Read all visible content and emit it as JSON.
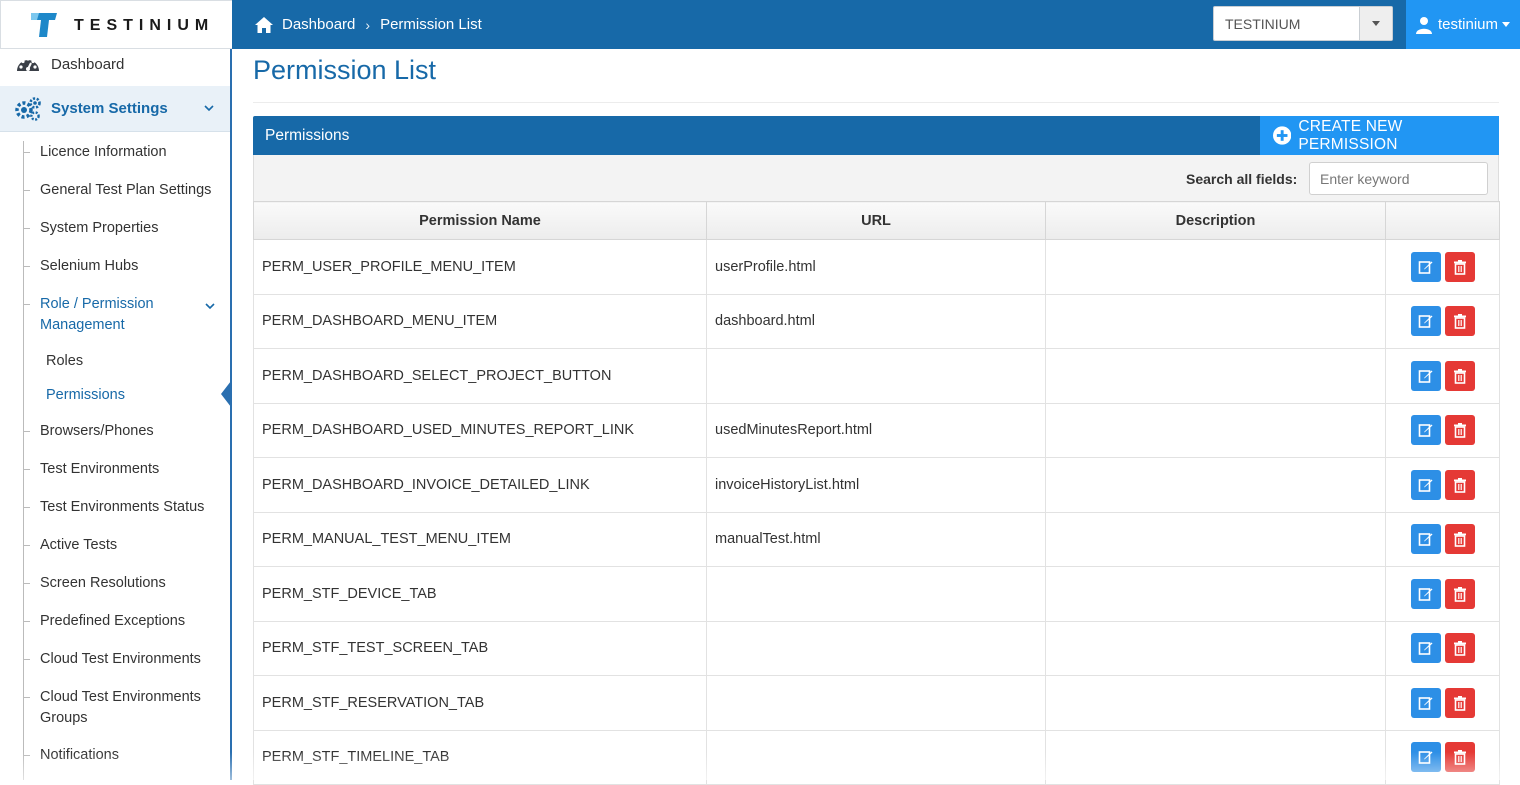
{
  "brand": {
    "name": "TESTINIUM"
  },
  "breadcrumb": {
    "home": "Dashboard",
    "current": "Permission List"
  },
  "project_select": {
    "value": "TESTINIUM"
  },
  "user": {
    "name": "testinium"
  },
  "sidebar": {
    "dashboard": "Dashboard",
    "system_settings": "System Settings",
    "items": [
      "Licence Information",
      "General Test Plan Settings",
      "System Properties",
      "Selenium Hubs"
    ],
    "role_group": {
      "line1": "Role / Permission",
      "line2": "Management"
    },
    "role_sub": [
      "Roles",
      "Permissions"
    ],
    "items_after": [
      "Browsers/Phones",
      "Test Environments",
      "Test Environments Status",
      "Active Tests",
      "Screen Resolutions",
      "Predefined Exceptions",
      "Cloud Test Environments"
    ],
    "cloud_groups": {
      "line1": "Cloud Test Environments",
      "line2": "Groups"
    },
    "notifications": "Notifications"
  },
  "page": {
    "title": "Permission List"
  },
  "panel": {
    "title": "Permissions",
    "create_label": "CREATE NEW PERMISSION"
  },
  "search": {
    "label": "Search all fields:",
    "placeholder": "Enter keyword"
  },
  "table": {
    "columns": [
      "Permission Name",
      "URL",
      "Description",
      ""
    ],
    "rows": [
      {
        "name": "PERM_USER_PROFILE_MENU_ITEM",
        "url": "userProfile.html",
        "description": ""
      },
      {
        "name": "PERM_DASHBOARD_MENU_ITEM",
        "url": "dashboard.html",
        "description": ""
      },
      {
        "name": "PERM_DASHBOARD_SELECT_PROJECT_BUTTON",
        "url": "",
        "description": ""
      },
      {
        "name": "PERM_DASHBOARD_USED_MINUTES_REPORT_LINK",
        "url": "usedMinutesReport.html",
        "description": ""
      },
      {
        "name": "PERM_DASHBOARD_INVOICE_DETAILED_LINK",
        "url": "invoiceHistoryList.html",
        "description": ""
      },
      {
        "name": "PERM_MANUAL_TEST_MENU_ITEM",
        "url": "manualTest.html",
        "description": ""
      },
      {
        "name": "PERM_STF_DEVICE_TAB",
        "url": "",
        "description": ""
      },
      {
        "name": "PERM_STF_TEST_SCREEN_TAB",
        "url": "",
        "description": ""
      },
      {
        "name": "PERM_STF_RESERVATION_TAB",
        "url": "",
        "description": ""
      },
      {
        "name": "PERM_STF_TIMELINE_TAB",
        "url": "",
        "description": ""
      }
    ]
  },
  "colors": {
    "primary": "#1769a8",
    "accent": "#2196f3",
    "edit": "#2d8fe6",
    "delete": "#e53935"
  },
  "icons": [
    "home-icon",
    "user-icon",
    "dashboard-gauge-icon",
    "gears-icon",
    "chevron-down-icon",
    "plus-circle-icon",
    "edit-icon",
    "trash-icon"
  ]
}
